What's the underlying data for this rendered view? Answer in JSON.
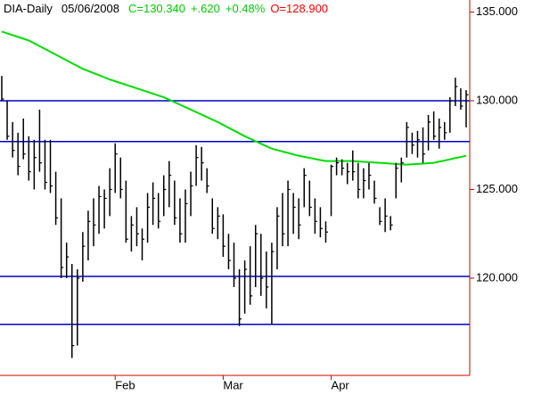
{
  "chart_data": {
    "type": "ohlc",
    "title": "DIA-Daily",
    "date": "05/06/2008",
    "quote": [
      {
        "text": "C=130.340",
        "color": "#00cc00"
      },
      {
        "text": "+.620",
        "color": "#00cc00"
      },
      {
        "text": "+0.48%",
        "color": "#00cc00"
      },
      {
        "text": "O=128.900",
        "color": "#ff0000"
      }
    ],
    "categories": [
      null,
      null,
      null,
      null,
      null,
      null,
      null,
      null,
      null,
      null,
      null,
      null,
      null,
      null,
      null,
      null,
      null,
      null,
      null,
      null,
      null,
      "Feb",
      null,
      null,
      null,
      null,
      null,
      null,
      null,
      null,
      null,
      null,
      null,
      null,
      null,
      null,
      null,
      null,
      null,
      null,
      null,
      "Mar",
      null,
      null,
      null,
      null,
      null,
      null,
      null,
      null,
      null,
      null,
      null,
      null,
      null,
      null,
      null,
      null,
      null,
      null,
      null,
      "Apr",
      null,
      null,
      null,
      null,
      null,
      null,
      null,
      null,
      null,
      null,
      null,
      null,
      null,
      null,
      null,
      null,
      null,
      null,
      null,
      null,
      null,
      null,
      null,
      null,
      null
    ],
    "high": [
      131.4,
      130.0,
      128.8,
      128.2,
      129.0,
      128.0,
      127.8,
      129.5,
      127.8,
      127.8,
      126.0,
      124.5,
      122.0,
      120.8,
      120.5,
      122.6,
      123.8,
      124.5,
      125.2,
      125.0,
      126.2,
      127.6,
      126.8,
      125.5,
      123.5,
      124.0,
      122.8,
      124.8,
      125.4,
      124.8,
      125.8,
      126.6,
      125.5,
      124.5,
      125.0,
      126.0,
      127.5,
      127.4,
      126.2,
      124.5,
      124.0,
      123.6,
      122.5,
      122.0,
      120.5,
      121.0,
      121.8,
      123.0,
      122.5,
      121.5,
      122.0,
      124.0,
      124.8,
      125.5,
      124.8,
      124.5,
      126.2,
      125.5,
      124.5,
      124.0,
      123.2,
      126.4,
      126.8,
      126.7,
      126.5,
      127.2,
      126.5,
      126.2,
      126.5,
      125.5,
      124.0,
      124.5,
      123.5,
      126.5,
      126.8,
      128.8,
      128.2,
      128.3,
      128.5,
      129.2,
      129.4,
      129.0,
      128.8,
      130.2,
      131.3,
      130.7,
      130.6
    ],
    "low": [
      130.0,
      127.8,
      126.8,
      125.8,
      126.7,
      125.5,
      125.0,
      126.0,
      125.0,
      124.8,
      123.0,
      120.0,
      120.0,
      115.5,
      116.2,
      119.8,
      121.0,
      121.8,
      122.5,
      122.8,
      123.5,
      124.8,
      124.5,
      122.0,
      121.5,
      121.8,
      121.0,
      122.0,
      123.0,
      122.8,
      123.5,
      124.0,
      123.0,
      122.0,
      122.0,
      123.5,
      125.2,
      125.5,
      124.8,
      122.5,
      122.2,
      121.2,
      120.5,
      119.5,
      117.3,
      118.0,
      118.5,
      119.5,
      119.0,
      118.3,
      117.4,
      120.5,
      121.8,
      121.8,
      122.5,
      122.2,
      124.0,
      123.5,
      122.5,
      122.3,
      122.0,
      123.5,
      125.8,
      125.8,
      125.3,
      125.5,
      124.5,
      124.5,
      125.0,
      124.2,
      123.0,
      122.6,
      122.7,
      124.5,
      125.4,
      126.8,
      127.0,
      126.8,
      126.5,
      127.2,
      127.8,
      127.3,
      127.8,
      128.2,
      129.7,
      129.5,
      128.5
    ],
    "close": [
      130.1,
      128.0,
      127.2,
      126.3,
      127.0,
      126.0,
      126.8,
      126.5,
      125.4,
      125.2,
      123.4,
      120.6,
      121.2,
      116.2,
      120.0,
      121.8,
      123.2,
      123.0,
      124.6,
      124.5,
      125.0,
      127.0,
      125.0,
      122.2,
      123.0,
      122.5,
      122.2,
      124.0,
      124.5,
      123.2,
      125.0,
      125.8,
      123.4,
      122.5,
      124.2,
      125.2,
      126.8,
      126.5,
      125.2,
      122.8,
      123.5,
      121.8,
      121.0,
      120.0,
      117.7,
      120.5,
      119.0,
      122.5,
      120.0,
      119.5,
      121.5,
      123.5,
      122.5,
      125.0,
      124.0,
      123.0,
      125.8,
      124.0,
      123.2,
      122.8,
      122.6,
      126.3,
      126.5,
      126.2,
      126.0,
      126.0,
      125.0,
      125.5,
      125.8,
      124.5,
      123.2,
      123.5,
      123.0,
      126.2,
      126.5,
      128.5,
      127.5,
      127.8,
      127.0,
      128.8,
      128.0,
      128.5,
      128.2,
      130.0,
      130.8,
      129.7,
      130.34
    ],
    "bar_color": "#000000",
    "ma": {
      "color": "#00dd00",
      "values": [
        133.9,
        133.8,
        133.7,
        133.6,
        133.5,
        133.4,
        133.24,
        133.08,
        132.92,
        132.76,
        132.6,
        132.44,
        132.28,
        132.12,
        131.96,
        131.8,
        131.68,
        131.56,
        131.44,
        131.32,
        131.2,
        131.1,
        131.0,
        130.9,
        130.8,
        130.7,
        130.6,
        130.5,
        130.4,
        130.3,
        130.2,
        130.06,
        129.92,
        129.78,
        129.64,
        129.5,
        129.36,
        129.22,
        129.08,
        128.94,
        128.8,
        128.64,
        128.48,
        128.32,
        128.16,
        128.0,
        127.86,
        127.72,
        127.58,
        127.44,
        127.3,
        127.22,
        127.14,
        127.06,
        126.98,
        126.9,
        126.84,
        126.78,
        126.72,
        126.66,
        126.6,
        126.6,
        126.6,
        126.6,
        126.6,
        126.6,
        126.58,
        126.56,
        126.54,
        126.52,
        126.5,
        126.48,
        126.46,
        126.44,
        126.42,
        126.4,
        126.42,
        126.44,
        126.46,
        126.48,
        126.5,
        126.57,
        126.63,
        126.7,
        126.77,
        126.83,
        126.9
      ]
    },
    "levels": [
      130.0,
      127.7,
      120.1,
      117.4
    ],
    "level_color": "#0000cc",
    "axis_color": "#cc0000",
    "ylim": [
      114.52,
      135.68
    ],
    "yticks": [
      {
        "value": 120,
        "label": "120.000"
      },
      {
        "value": 125,
        "label": "125.000"
      },
      {
        "value": 130,
        "label": "130.000"
      },
      {
        "value": 135,
        "label": "135.000"
      }
    ]
  }
}
